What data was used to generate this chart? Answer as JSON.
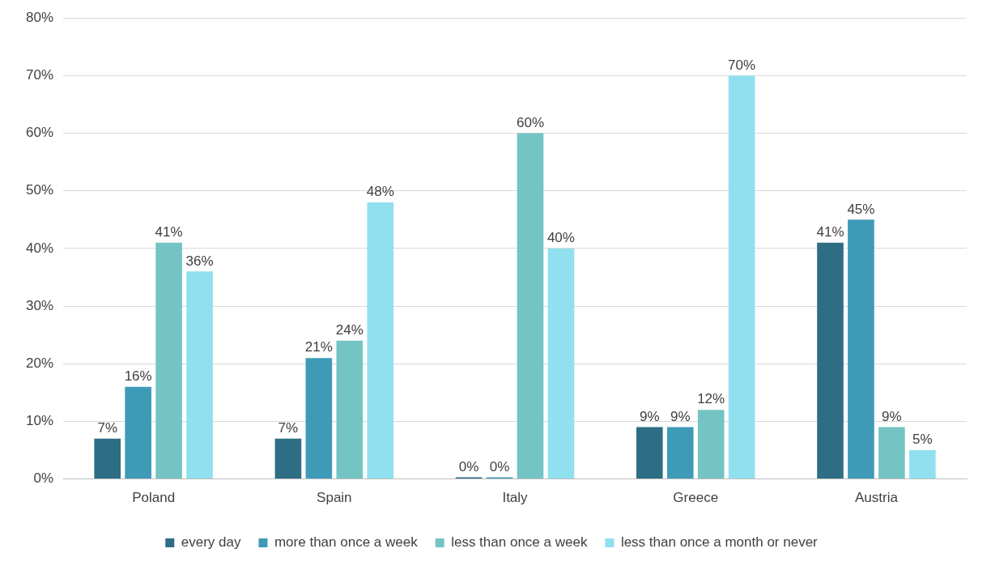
{
  "chart_data": {
    "type": "bar",
    "categories": [
      "Poland",
      "Spain",
      "Italy",
      "Greece",
      "Austria"
    ],
    "series": [
      {
        "name": "every day",
        "color": "#2e6e85",
        "values": [
          7,
          7,
          0,
          9,
          41
        ],
        "value_labels": [
          "7%",
          "7%",
          "0%",
          "9%",
          "41%"
        ]
      },
      {
        "name": "more than once a week",
        "color": "#3f9ab8",
        "values": [
          16,
          21,
          0,
          9,
          45
        ],
        "value_labels": [
          "16%",
          "21%",
          "0%",
          "9%",
          "45%"
        ]
      },
      {
        "name": "less than once a week",
        "color": "#74c4c4",
        "values": [
          41,
          24,
          60,
          12,
          9
        ],
        "value_labels": [
          "41%",
          "24%",
          "60%",
          "12%",
          "9%"
        ]
      },
      {
        "name": "less than once a month or never",
        "color": "#90e0ef",
        "values": [
          36,
          48,
          40,
          70,
          5
        ],
        "value_labels": [
          "36%",
          "48%",
          "40%",
          "70%",
          "5%"
        ]
      }
    ],
    "ylim": [
      0,
      80
    ],
    "yticks": [
      {
        "value": 0,
        "label": "0%"
      },
      {
        "value": 10,
        "label": "10%"
      },
      {
        "value": 20,
        "label": "20%"
      },
      {
        "value": 30,
        "label": "30%"
      },
      {
        "value": 40,
        "label": "40%"
      },
      {
        "value": 50,
        "label": "50%"
      },
      {
        "value": 60,
        "label": "60%"
      },
      {
        "value": 70,
        "label": "70%"
      },
      {
        "value": 80,
        "label": "80%"
      }
    ],
    "grid": "y",
    "legend": "bottom"
  }
}
